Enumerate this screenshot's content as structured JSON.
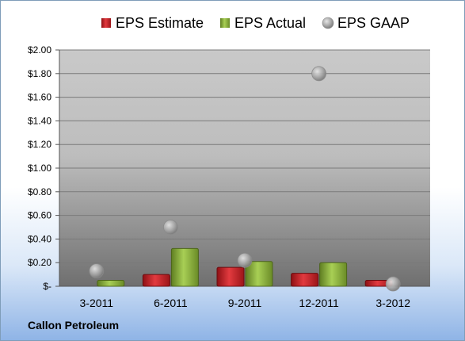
{
  "company": "Callon Petroleum",
  "chart_data": {
    "type": "bar",
    "categories": [
      "3-2011",
      "6-2011",
      "9-2011",
      "12-2011",
      "3-2012"
    ],
    "series": [
      {
        "name": "EPS Estimate",
        "kind": "bar",
        "color": "#c0262b",
        "values": [
          0.0,
          0.1,
          0.16,
          0.11,
          0.05
        ]
      },
      {
        "name": "EPS Actual",
        "kind": "bar",
        "color": "#8db43c",
        "values": [
          0.05,
          0.32,
          0.21,
          0.2,
          0.0
        ]
      },
      {
        "name": "EPS GAAP",
        "kind": "scatter",
        "color": "#a6a6a6",
        "values": [
          0.13,
          0.5,
          0.22,
          1.8,
          0.02
        ]
      }
    ],
    "yticks": [
      "$2.00",
      "$1.80",
      "$1.60",
      "$1.40",
      "$1.20",
      "$1.00",
      "$0.80",
      "$0.60",
      "$0.40",
      "$0.20",
      "$-"
    ],
    "ylim": [
      0,
      2.0
    ],
    "grid": true,
    "legend_position": "top"
  }
}
